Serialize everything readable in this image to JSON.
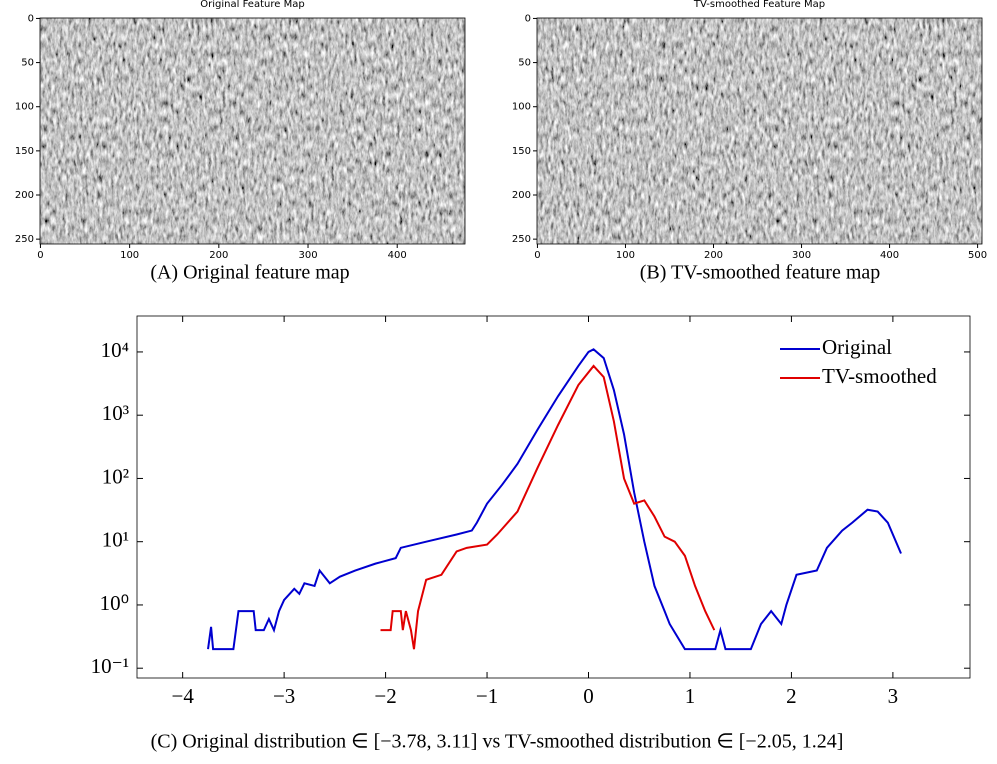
{
  "chart_data": [
    {
      "type": "image",
      "title": "Original Feature Map",
      "xlim": [
        -0.5,
        476
      ],
      "ylim": [
        -0.5,
        255.5
      ],
      "xticks": [
        0,
        100,
        200,
        300,
        400
      ],
      "yticks": [
        0,
        50,
        100,
        150,
        200,
        250
      ],
      "caption": "(A) Original feature map"
    },
    {
      "type": "image",
      "title": "TV-smoothed Feature Map",
      "xlim": [
        -0.5,
        505
      ],
      "ylim": [
        -0.5,
        255.5
      ],
      "xticks": [
        0,
        100,
        200,
        300,
        400,
        500
      ],
      "yticks": [
        0,
        50,
        100,
        150,
        200,
        250
      ],
      "caption": "(B) TV-smoothed feature map"
    },
    {
      "type": "line",
      "log_y": true,
      "legend": "upper right",
      "xlim": [
        -4.45,
        3.76
      ],
      "ylim": [
        0.07,
        37000
      ],
      "xticks": [
        {
          "value": -4,
          "label": "−4"
        },
        {
          "value": -3,
          "label": "−3"
        },
        {
          "value": -2,
          "label": "−2"
        },
        {
          "value": -1,
          "label": "−1"
        },
        0,
        1,
        2,
        3
      ],
      "yticks": [
        {
          "value": 0.1,
          "label": "10⁻¹"
        },
        {
          "value": 1,
          "label": "10⁰"
        },
        {
          "value": 10,
          "label": "10¹"
        },
        {
          "value": 100,
          "label": "10²"
        },
        {
          "value": 1000,
          "label": "10³"
        },
        {
          "value": 10000,
          "label": "10⁴"
        }
      ],
      "series": [
        {
          "name": "Original",
          "color": "#0000d0",
          "x": [
            -3.75,
            -3.72,
            -3.7,
            -3.5,
            -3.45,
            -3.3,
            -3.28,
            -3.2,
            -3.15,
            -3.1,
            -3.05,
            -3.0,
            -2.9,
            -2.85,
            -2.8,
            -2.7,
            -2.65,
            -2.55,
            -2.45,
            -2.3,
            -2.1,
            -1.9,
            -1.85,
            -1.6,
            -1.3,
            -1.15,
            -1.1,
            -1.0,
            -0.85,
            -0.7,
            -0.5,
            -0.3,
            -0.1,
            0.0,
            0.05,
            0.15,
            0.25,
            0.35,
            0.45,
            0.55,
            0.65,
            0.75,
            0.8,
            0.95,
            1.25,
            1.3,
            1.35,
            1.6,
            1.7,
            1.8,
            1.9,
            1.95,
            2.05,
            2.25,
            2.35,
            2.5,
            2.6,
            2.75,
            2.85,
            2.95,
            3.08
          ],
          "values": [
            0.2,
            0.45,
            0.2,
            0.2,
            0.8,
            0.8,
            0.4,
            0.4,
            0.6,
            0.4,
            0.8,
            1.2,
            1.8,
            1.5,
            2.2,
            2.0,
            3.5,
            2.2,
            2.8,
            3.5,
            4.5,
            5.5,
            8,
            10,
            13,
            15,
            20,
            40,
            80,
            170,
            600,
            2000,
            6000,
            10000,
            11000,
            8000,
            2500,
            500,
            60,
            10,
            2,
            0.8,
            0.5,
            0.2,
            0.2,
            0.4,
            0.2,
            0.2,
            0.5,
            0.8,
            0.5,
            1.0,
            3.0,
            3.5,
            8,
            15,
            20,
            32,
            30,
            20,
            6.5
          ]
        },
        {
          "name": "TV-smoothed",
          "color": "#e00000",
          "x": [
            -2.05,
            -1.95,
            -1.93,
            -1.85,
            -1.83,
            -1.8,
            -1.75,
            -1.72,
            -1.68,
            -1.6,
            -1.45,
            -1.3,
            -1.2,
            -1.0,
            -0.9,
            -0.7,
            -0.5,
            -0.3,
            -0.1,
            0.05,
            0.15,
            0.25,
            0.35,
            0.45,
            0.55,
            0.65,
            0.75,
            0.85,
            0.95,
            1.05,
            1.15,
            1.24
          ],
          "values": [
            0.4,
            0.4,
            0.8,
            0.8,
            0.4,
            0.8,
            0.4,
            0.2,
            0.8,
            2.5,
            3,
            7,
            8,
            9,
            13,
            30,
            150,
            700,
            3000,
            6000,
            4000,
            800,
            100,
            40,
            45,
            25,
            12,
            10,
            6,
            2,
            0.8,
            0.4
          ]
        }
      ],
      "caption": "(C) Original distribution ∈ [−3.78, 3.11] vs TV-smoothed distribution ∈ [−2.05, 1.24]"
    }
  ]
}
